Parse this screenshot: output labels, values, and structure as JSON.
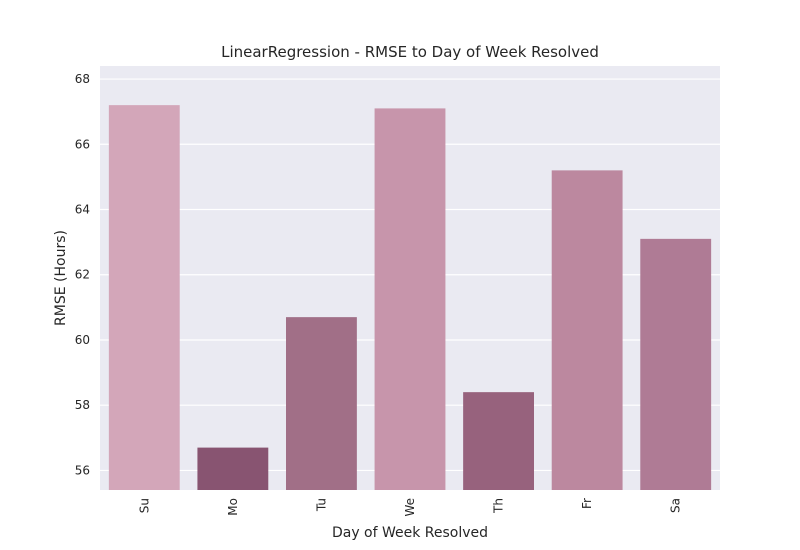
{
  "chart_data": {
    "type": "bar",
    "title": "LinearRegression - RMSE to Day of Week Resolved",
    "xlabel": "Day of Week Resolved",
    "ylabel": "RMSE (Hours)",
    "categories": [
      "Su",
      "Mo",
      "Tu",
      "We",
      "Th",
      "Fr",
      "Sa"
    ],
    "values": [
      67.2,
      56.7,
      60.7,
      67.1,
      58.4,
      65.2,
      63.1
    ],
    "colors": [
      "#d3a6b9",
      "#885471",
      "#a16f87",
      "#c795ab",
      "#97627d",
      "#bc889f",
      "#af7b95"
    ],
    "ylim": [
      55.4,
      68.4
    ],
    "yticks": [
      56,
      58,
      60,
      62,
      64,
      66,
      68
    ],
    "grid": true,
    "background": "#eaeaf2",
    "grid_color": "#ffffff"
  }
}
